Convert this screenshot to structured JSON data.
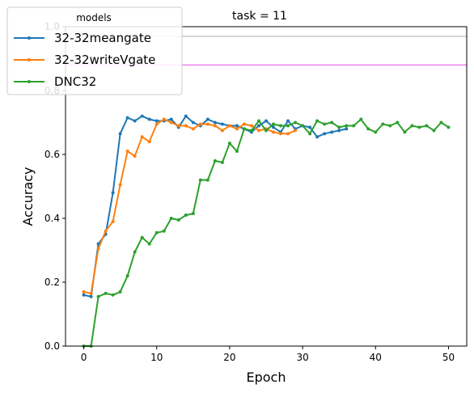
{
  "chart_data": {
    "type": "line",
    "title": "task = 11",
    "xlabel": "Epoch",
    "ylabel": "Accuracy",
    "xlim": [
      -2.5,
      52.5
    ],
    "ylim": [
      0.0,
      1.0
    ],
    "xticks": [
      "0",
      "10",
      "20",
      "30",
      "40",
      "50"
    ],
    "yticks": [
      "0.0",
      "0.2",
      "0.4",
      "0.6",
      "0.8",
      "1.0"
    ],
    "legend": {
      "title": "models",
      "placement": "top-left"
    },
    "reference_lines": [
      {
        "y": 0.97,
        "color": "#c8c8c8"
      },
      {
        "y": 0.88,
        "color": "#ee82ee"
      }
    ],
    "series": [
      {
        "name": "32-32meangate",
        "color": "#1f77b4",
        "x": [
          0,
          1,
          2,
          3,
          4,
          5,
          6,
          7,
          8,
          9,
          10,
          11,
          12,
          13,
          14,
          15,
          16,
          17,
          18,
          19,
          20,
          21,
          22,
          23,
          24,
          25,
          26,
          27,
          28,
          29,
          30,
          31,
          32,
          33,
          34,
          35,
          36
        ],
        "y": [
          0.16,
          0.155,
          0.32,
          0.35,
          0.48,
          0.665,
          0.715,
          0.705,
          0.72,
          0.71,
          0.705,
          0.705,
          0.71,
          0.685,
          0.72,
          0.7,
          0.69,
          0.71,
          0.7,
          0.695,
          0.69,
          0.69,
          0.68,
          0.67,
          0.69,
          0.705,
          0.685,
          0.67,
          0.705,
          0.68,
          0.69,
          0.685,
          0.655,
          0.665,
          0.67,
          0.675,
          0.68
        ]
      },
      {
        "name": "32-32writeVgate",
        "color": "#ff7f0e",
        "x": [
          0,
          1,
          2,
          3,
          4,
          5,
          6,
          7,
          8,
          9,
          10,
          11,
          12,
          13,
          14,
          15,
          16,
          17,
          18,
          19,
          20,
          21,
          22,
          23,
          24,
          25,
          26,
          27,
          28,
          29
        ],
        "y": [
          0.17,
          0.165,
          0.305,
          0.36,
          0.39,
          0.505,
          0.61,
          0.595,
          0.655,
          0.64,
          0.695,
          0.71,
          0.7,
          0.69,
          0.69,
          0.68,
          0.695,
          0.695,
          0.69,
          0.675,
          0.69,
          0.68,
          0.695,
          0.69,
          0.675,
          0.68,
          0.67,
          0.665,
          0.665,
          0.675
        ]
      },
      {
        "name": "DNC32",
        "color": "#2ca02c",
        "x": [
          0,
          1,
          2,
          3,
          4,
          5,
          6,
          7,
          8,
          9,
          10,
          11,
          12,
          13,
          14,
          15,
          16,
          17,
          18,
          19,
          20,
          21,
          22,
          23,
          24,
          25,
          26,
          27,
          28,
          29,
          30,
          31,
          32,
          33,
          34,
          35,
          36,
          37,
          38,
          39,
          40,
          41,
          42,
          43,
          44,
          45,
          46,
          47,
          48,
          49,
          50
        ],
        "y": [
          0.0,
          0.0,
          0.155,
          0.165,
          0.16,
          0.17,
          0.22,
          0.295,
          0.34,
          0.32,
          0.355,
          0.36,
          0.4,
          0.395,
          0.41,
          0.415,
          0.52,
          0.52,
          0.58,
          0.575,
          0.635,
          0.61,
          0.68,
          0.675,
          0.705,
          0.675,
          0.695,
          0.69,
          0.69,
          0.7,
          0.69,
          0.665,
          0.705,
          0.695,
          0.7,
          0.685,
          0.69,
          0.69,
          0.71,
          0.68,
          0.67,
          0.695,
          0.69,
          0.7,
          0.67,
          0.69,
          0.685,
          0.69,
          0.675,
          0.7,
          0.685
        ]
      }
    ]
  }
}
